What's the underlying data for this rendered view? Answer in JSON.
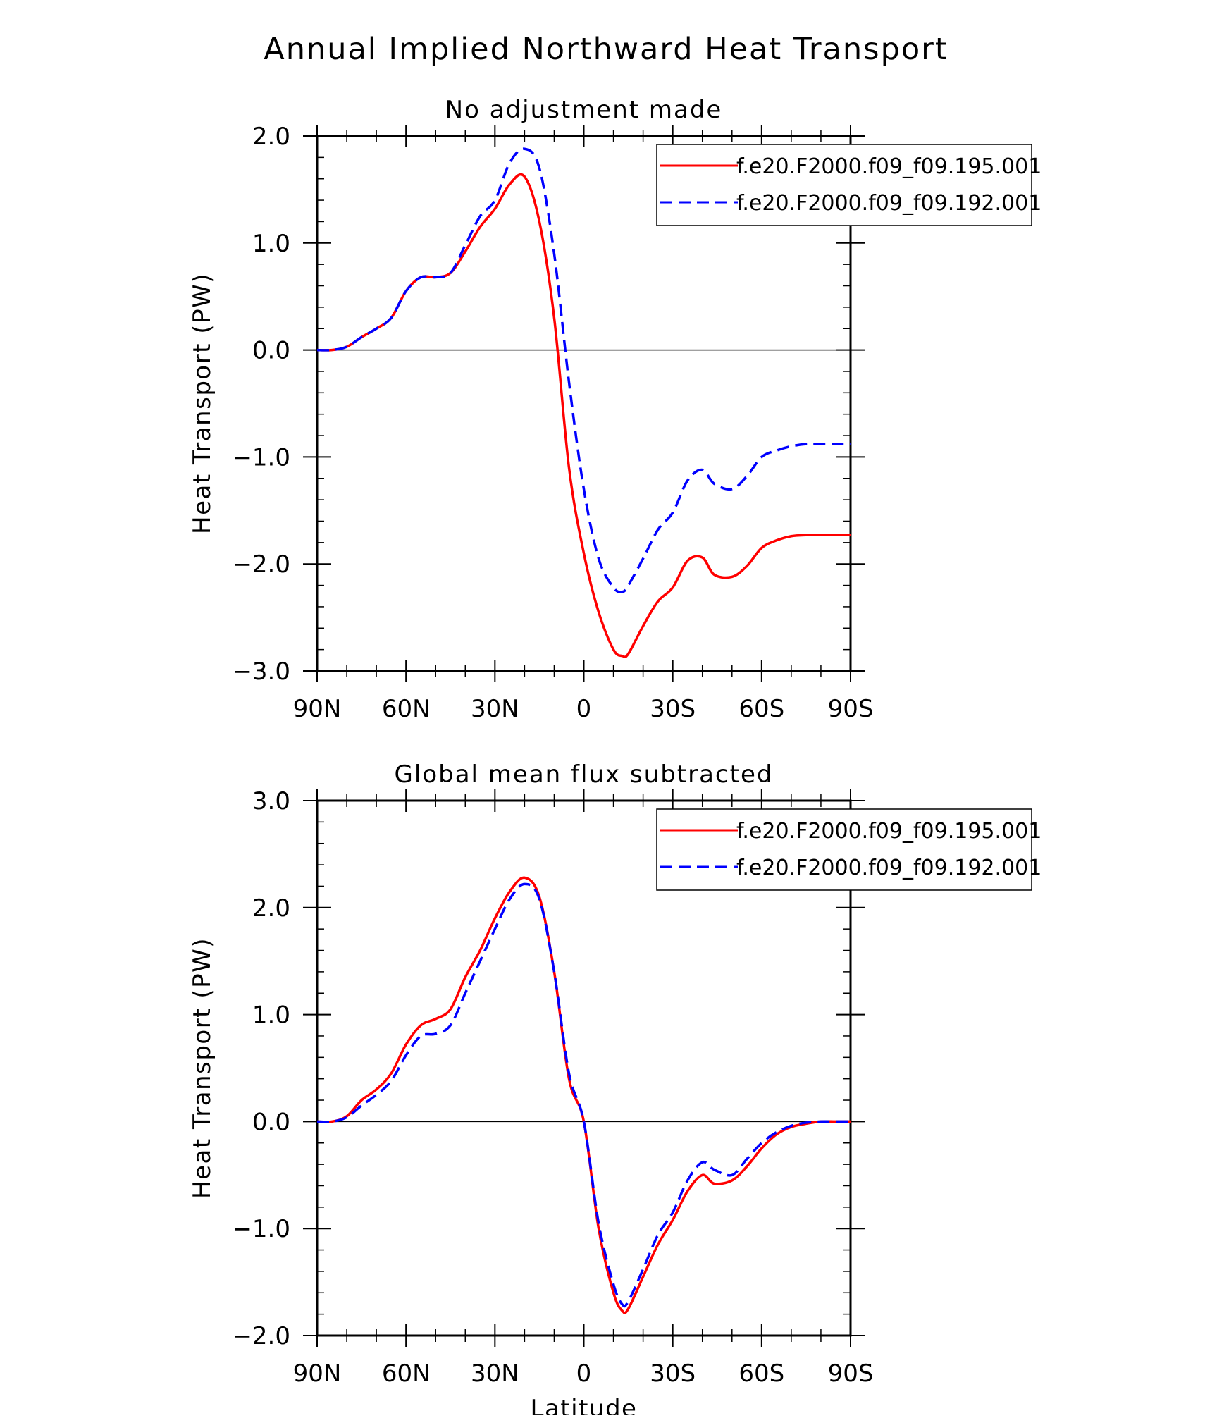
{
  "figure": {
    "title": "Annual Implied Northward Heat Transport"
  },
  "chart_data": [
    {
      "type": "line",
      "title": "No adjustment made",
      "xlabel": "",
      "ylabel": "Heat Transport (PW)",
      "xlim": [
        90,
        -90
      ],
      "ylim": [
        -3.0,
        2.0
      ],
      "xticks": [
        90,
        60,
        30,
        0,
        -30,
        -60,
        -90
      ],
      "xtick_labels": [
        "90N",
        "60N",
        "30N",
        "0",
        "30S",
        "60S",
        "90S"
      ],
      "yticks": [
        -3.0,
        -2.0,
        -1.0,
        0.0,
        1.0,
        2.0
      ],
      "ytick_labels": [
        "−3.0",
        "−2.0",
        "−1.0",
        "0.0",
        "1.0",
        "2.0"
      ],
      "reference_line": 0.0,
      "grid": false,
      "legend_position": "top-right",
      "series": [
        {
          "name": "f.e20.F2000.f09_f09.195.001",
          "color": "#ff0000",
          "dash": "solid",
          "x": [
            90,
            85,
            80,
            75,
            70,
            65,
            60,
            55,
            50,
            45,
            40,
            35,
            30,
            25,
            20,
            15,
            10,
            5,
            0,
            -5,
            -10,
            -13,
            -15,
            -20,
            -25,
            -30,
            -35,
            -40,
            -44,
            -50,
            -55,
            -60,
            -65,
            -70,
            -75,
            -80,
            -85,
            -90
          ],
          "values": [
            0.0,
            0.0,
            0.03,
            0.12,
            0.2,
            0.3,
            0.55,
            0.68,
            0.68,
            0.72,
            0.92,
            1.15,
            1.32,
            1.55,
            1.62,
            1.2,
            0.3,
            -1.1,
            -1.9,
            -2.45,
            -2.8,
            -2.86,
            -2.84,
            -2.58,
            -2.35,
            -2.22,
            -1.97,
            -1.94,
            -2.1,
            -2.12,
            -2.02,
            -1.85,
            -1.78,
            -1.74,
            -1.73,
            -1.73,
            -1.73,
            -1.73
          ]
        },
        {
          "name": "f.e20.F2000.f09_f09.192.001",
          "color": "#0000ff",
          "dash": "dashed",
          "x": [
            90,
            85,
            80,
            75,
            70,
            65,
            60,
            55,
            50,
            45,
            40,
            35,
            30,
            25,
            20,
            15,
            10,
            5,
            0,
            -5,
            -10,
            -13,
            -15,
            -20,
            -25,
            -30,
            -35,
            -40,
            -44,
            -50,
            -55,
            -60,
            -65,
            -70,
            -75,
            -80,
            -85,
            -90
          ],
          "values": [
            0.0,
            0.0,
            0.03,
            0.12,
            0.2,
            0.3,
            0.55,
            0.68,
            0.68,
            0.72,
            0.98,
            1.25,
            1.4,
            1.75,
            1.88,
            1.7,
            0.9,
            -0.3,
            -1.3,
            -1.95,
            -2.22,
            -2.26,
            -2.2,
            -1.95,
            -1.68,
            -1.52,
            -1.22,
            -1.12,
            -1.25,
            -1.3,
            -1.18,
            -1.0,
            -0.94,
            -0.9,
            -0.88,
            -0.88,
            -0.88,
            -0.88
          ]
        }
      ]
    },
    {
      "type": "line",
      "title": "Global mean flux subtracted",
      "xlabel": "Latitude",
      "ylabel": "Heat Transport (PW)",
      "xlim": [
        90,
        -90
      ],
      "ylim": [
        -2.0,
        3.0
      ],
      "xticks": [
        90,
        60,
        30,
        0,
        -30,
        -60,
        -90
      ],
      "xtick_labels": [
        "90N",
        "60N",
        "30N",
        "0",
        "30S",
        "60S",
        "90S"
      ],
      "yticks": [
        -2.0,
        -1.0,
        0.0,
        1.0,
        2.0,
        3.0
      ],
      "ytick_labels": [
        "−2.0",
        "−1.0",
        "0.0",
        "1.0",
        "2.0",
        "3.0"
      ],
      "reference_line": 0.0,
      "grid": false,
      "legend_position": "top-right",
      "series": [
        {
          "name": "f.e20.F2000.f09_f09.195.001",
          "color": "#ff0000",
          "dash": "solid",
          "x": [
            90,
            85,
            80,
            75,
            70,
            65,
            60,
            55,
            50,
            45,
            40,
            35,
            30,
            25,
            20,
            15,
            10,
            5,
            0,
            -5,
            -10,
            -13,
            -15,
            -20,
            -25,
            -30,
            -35,
            -40,
            -44,
            -50,
            -55,
            -60,
            -65,
            -70,
            -75,
            -80,
            -85,
            -90
          ],
          "values": [
            0.0,
            0.0,
            0.05,
            0.2,
            0.3,
            0.45,
            0.72,
            0.9,
            0.96,
            1.05,
            1.35,
            1.6,
            1.9,
            2.15,
            2.28,
            2.1,
            1.4,
            0.4,
            0.0,
            -1.0,
            -1.6,
            -1.77,
            -1.75,
            -1.45,
            -1.15,
            -0.92,
            -0.65,
            -0.5,
            -0.58,
            -0.55,
            -0.42,
            -0.25,
            -0.12,
            -0.05,
            -0.02,
            0.0,
            0.0,
            0.0
          ]
        },
        {
          "name": "f.e20.F2000.f09_f09.192.001",
          "color": "#0000ff",
          "dash": "dashed",
          "x": [
            90,
            85,
            80,
            75,
            70,
            65,
            60,
            55,
            50,
            45,
            40,
            35,
            30,
            25,
            20,
            15,
            10,
            5,
            0,
            -5,
            -10,
            -13,
            -15,
            -20,
            -25,
            -30,
            -35,
            -40,
            -44,
            -50,
            -55,
            -60,
            -65,
            -70,
            -75,
            -80,
            -85,
            -90
          ],
          "values": [
            0.0,
            0.0,
            0.04,
            0.15,
            0.25,
            0.38,
            0.62,
            0.8,
            0.82,
            0.9,
            1.2,
            1.5,
            1.8,
            2.08,
            2.22,
            2.08,
            1.4,
            0.45,
            0.0,
            -0.95,
            -1.52,
            -1.71,
            -1.68,
            -1.38,
            -1.06,
            -0.85,
            -0.55,
            -0.38,
            -0.45,
            -0.5,
            -0.35,
            -0.2,
            -0.1,
            -0.04,
            -0.01,
            0.0,
            0.0,
            0.0
          ]
        }
      ]
    }
  ]
}
